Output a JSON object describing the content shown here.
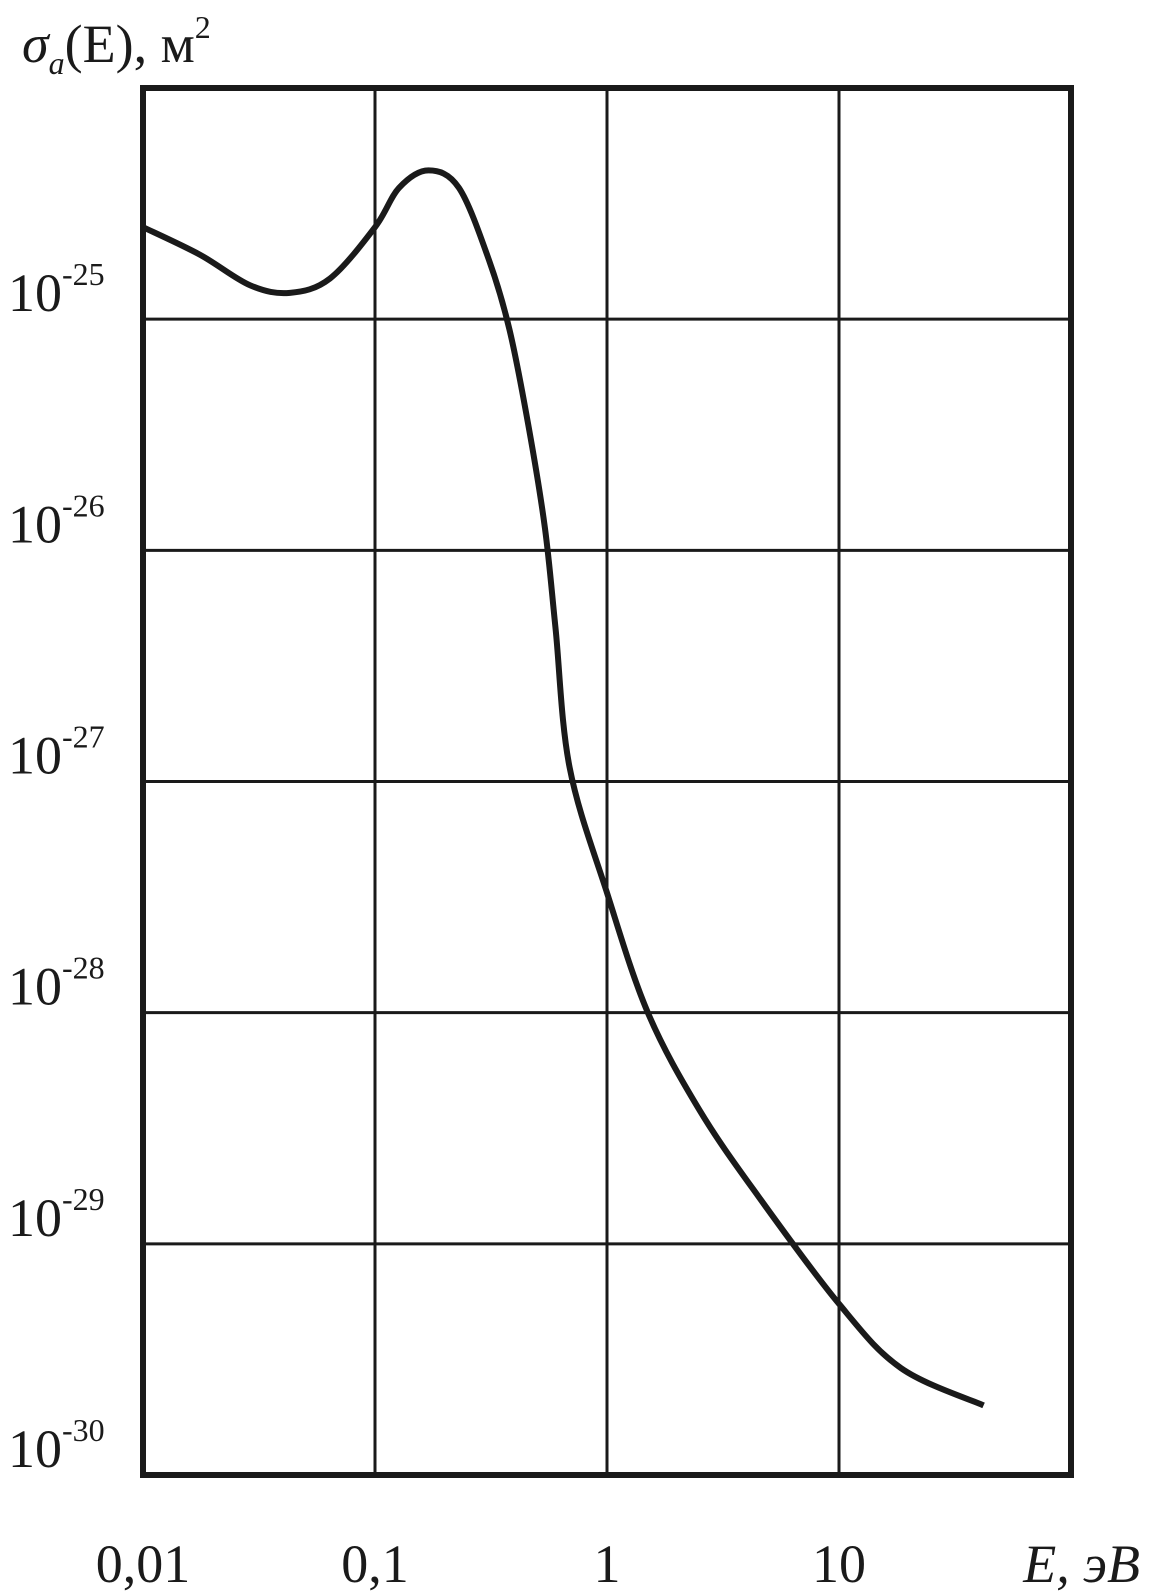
{
  "chart_data": {
    "type": "line",
    "y_label": {
      "symbol": "σ",
      "sub": "a",
      "body": "(E), м",
      "sup": "2"
    },
    "x_label": "E, эВ",
    "x": [
      0.01,
      0.0176,
      0.029,
      0.043,
      0.064,
      0.1,
      0.127,
      0.17,
      0.23,
      0.31,
      0.38,
      0.46,
      0.54,
      0.6,
      0.69,
      1,
      1.5,
      2.5,
      4.5,
      10,
      18.5,
      42
    ],
    "series": [
      {
        "color": "#1a1a1a",
        "values": [
          2.5e-25,
          1.9e-25,
          1.4e-25,
          1.3e-25,
          1.5e-25,
          2.5e-25,
          3.7e-25,
          4.4e-25,
          3.7e-25,
          1.8e-25,
          9e-26,
          3.4e-26,
          1.25e-26,
          4.6e-27,
          1.15e-27,
          3.3e-28,
          1e-28,
          3.8e-29,
          1.6e-29,
          5.5e-30,
          2.9e-30,
          2e-30
        ]
      }
    ],
    "xlog": true,
    "ylog": true,
    "xlim": [
      0.01,
      100
    ],
    "ylim": [
      1e-30,
      1e-24
    ],
    "xticks": [
      {
        "value": 0.01,
        "label": "0,01"
      },
      {
        "value": 0.1,
        "label": "0,1"
      },
      {
        "value": 1,
        "label": "1"
      },
      {
        "value": 10,
        "label": "10"
      }
    ],
    "yticks": [
      {
        "value": 1e-30,
        "label": "10",
        "sup": "-30"
      },
      {
        "value": 1e-29,
        "label": "10",
        "sup": "-29"
      },
      {
        "value": 1e-28,
        "label": "10",
        "sup": "-28"
      },
      {
        "value": 1e-27,
        "label": "10",
        "sup": "-27"
      },
      {
        "value": 1e-26,
        "label": "10",
        "sup": "-26"
      },
      {
        "value": 1e-25,
        "label": "10",
        "sup": "-25"
      }
    ],
    "grid": true
  }
}
